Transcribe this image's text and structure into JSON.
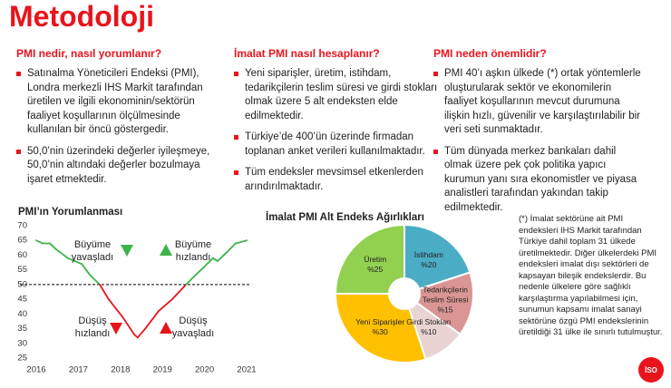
{
  "title": "Metodoloji",
  "columns": [
    {
      "heading": "PMI nedir, nasıl yorumlanır?",
      "bullets": [
        "Satınalma Yöneticileri Endeksi (PMI), Londra merkezli IHS Markit tarafından üretilen ve ilgili ekonominin/sektörün faaliyet koşullarının ölçülmesinde kullanılan bir öncü göstergedir.",
        "50,0’nin üzerindeki değerler iyileşmeye, 50,0’nin altındaki değerler bozulmaya işaret etmektedir."
      ]
    },
    {
      "heading": "İmalat PMI nasıl hesaplanır?",
      "bullets": [
        "Yeni siparişler, üretim, istihdam, tedarikçilerin teslim süresi ve girdi stokları olmak üzere 5 alt endeksten elde edilmektedir.",
        "Türkiye’de 400’ün üzerinde firmadan toplanan anket verileri kullanılmaktadır.",
        "Tüm endeksler mevsimsel etkenlerden arındırılmaktadır."
      ]
    },
    {
      "heading": "PMI neden önemlidir?",
      "bullets": [
        "PMI 40’ı aşkın ülkede (*) ortak yöntemlerle oluşturularak sektör ve ekonomilerin faaliyet koşullarının mevcut durumuna ilişkin hızlı, güvenilir ve karşılaştırılabilir bir veri seti sunmaktadır.",
        "Tüm dünyada merkez bankaları dahil olmak üzere pek çok politika yapıcı kurumun yanı sıra ekonomistler ve piyasa analistleri tarafından yakından takip edilmektedir."
      ]
    }
  ],
  "footnote": "(*) İmalat sektörüne ait PMI endeksleri IHS Markit tarafından Türkiye dahil toplam 31 ülkede üretilmektedir. Diğer ülkelerdeki PMI endeksleri imalat dışı sektörleri de kapsayan bileşik endekslerdir. Bu nedenle ülkelere göre sağlıklı karşılaştırma yapılabilmesi için, sunumun kapsamı imalat sanayi sektörüne özgü PMI endekslerinin üretildiği 31 ülke ile sınırlı tutulmuştur.",
  "logo": "İSO",
  "chart_data": [
    {
      "type": "line",
      "title": "PMI’ın Yorumlanması",
      "x": [
        2016.0,
        2016.15,
        2016.32,
        2016.47,
        2016.75,
        2017.08,
        2017.29,
        2017.51,
        2017.72,
        2018.05,
        2018.33,
        2018.41,
        2018.59,
        2018.91,
        2019.23,
        2019.56,
        2019.77,
        2019.99,
        2020.2,
        2020.31,
        2020.53,
        2020.74,
        2021.0
      ],
      "values": [
        65,
        64,
        64,
        62,
        59,
        57,
        53,
        50,
        45,
        39,
        33,
        32,
        35,
        41,
        45,
        50,
        53,
        56,
        59,
        58,
        61,
        64,
        65
      ],
      "xlim": [
        2016,
        2021
      ],
      "xticks": [
        2016,
        2017,
        2018,
        2019,
        2020,
        2021
      ],
      "ylim": [
        25,
        70
      ],
      "yticks": [
        25,
        30,
        35,
        40,
        45,
        50,
        55,
        60,
        65,
        70
      ],
      "reference_line": 50,
      "color_above": "#3cb44b",
      "color_below": "#e8141c",
      "annotations": [
        "Büyüme yavaşladı",
        "Büyüme hızlandı",
        "Düşüş hızlandı",
        "Düşüş yavaşladı"
      ]
    },
    {
      "type": "pie",
      "title": "İmalat PMI Alt Endeks Ağırlıkları",
      "categories": [
        "İstihdam",
        "Tedarikçilerin Teslim Süresi",
        "Girdi Stokları",
        "Yeni Siparişler",
        "Üretim"
      ],
      "values": [
        20,
        15,
        10,
        30,
        25
      ],
      "value_labels": [
        "%20",
        "%15",
        "%10",
        "%30",
        "%25"
      ],
      "colors": [
        "#4bacc6",
        "#d99694",
        "#e9d3d3",
        "#ffc000",
        "#92d050"
      ]
    }
  ]
}
